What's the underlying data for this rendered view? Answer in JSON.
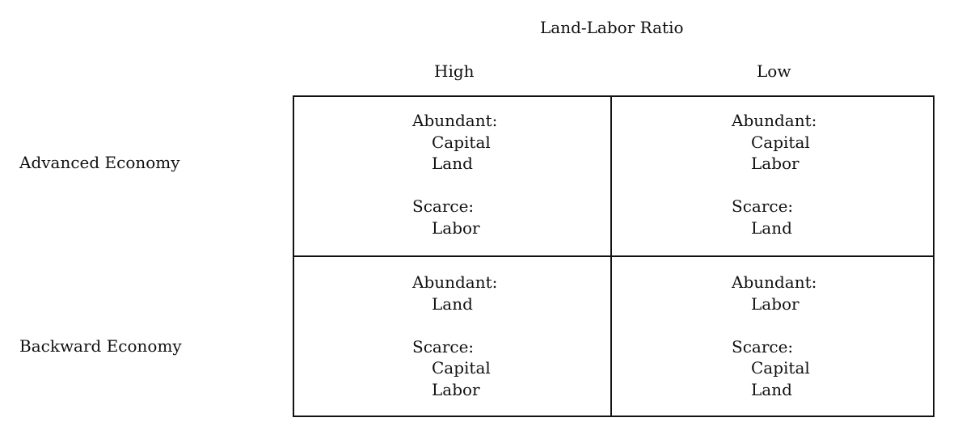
{
  "title": "Land-Labor Ratio",
  "columns": {
    "high": "High",
    "low": "Low"
  },
  "rows": {
    "advanced": "Advanced Economy",
    "backward": "Backward Economy"
  },
  "cells": {
    "advanced_high": {
      "abundant_label": "Abundant:",
      "abundant": [
        "Capital",
        "Land"
      ],
      "scarce_label": "Scarce:",
      "scarce": [
        "Labor"
      ]
    },
    "advanced_low": {
      "abundant_label": "Abundant:",
      "abundant": [
        "Capital",
        "Labor"
      ],
      "scarce_label": "Scarce:",
      "scarce": [
        "Land"
      ]
    },
    "backward_high": {
      "abundant_label": "Abundant:",
      "abundant": [
        "Land"
      ],
      "scarce_label": "Scarce:",
      "scarce": [
        "Capital",
        "Labor"
      ]
    },
    "backward_low": {
      "abundant_label": "Abundant:",
      "abundant": [
        "Labor"
      ],
      "scarce_label": "Scarce:",
      "scarce": [
        "Capital",
        "Land"
      ]
    }
  }
}
